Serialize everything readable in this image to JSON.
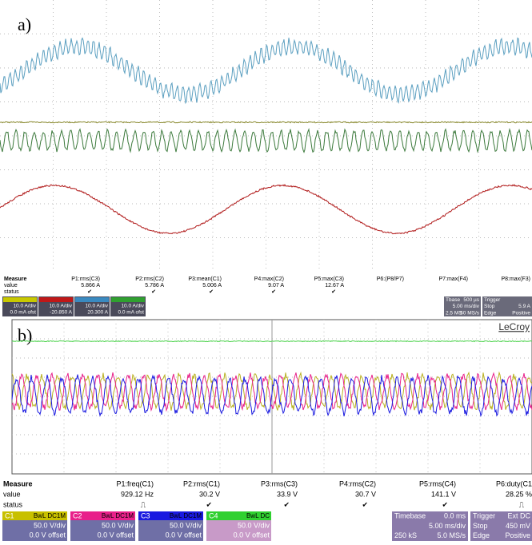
{
  "panel_a": {
    "label": "a)",
    "measure": {
      "heading": "Measure",
      "row_labels": [
        "value",
        "status"
      ],
      "columns": [
        {
          "name": "P1:rms(C3)",
          "value": "5.866 A",
          "status": "✔"
        },
        {
          "name": "P2:rms(C2)",
          "value": "5.786 A",
          "status": "✔"
        },
        {
          "name": "P3:mean(C1)",
          "value": "5.006 A",
          "status": "✔"
        },
        {
          "name": "P4:max(C2)",
          "value": "9.07 A",
          "status": "✔"
        },
        {
          "name": "P5:max(C3)",
          "value": "12.67 A",
          "status": "✔"
        },
        {
          "name": "P6:(P8/P7)"
        },
        {
          "name": "P7:max(F4)"
        },
        {
          "name": "P8:max(F3)"
        }
      ]
    },
    "channels": [
      {
        "scale": "10.0 A/div",
        "offset": "0.0 mA ofst"
      },
      {
        "scale": "10.0 A/div",
        "offset": "-20.850 A"
      },
      {
        "scale": "10.0 A/div",
        "offset": "20.300 A"
      },
      {
        "scale": "10.0 A/div",
        "offset": "0.0 mA ofst"
      }
    ],
    "timebase": {
      "title": "Tbase",
      "delay": "500 µs",
      "scale": "5.00 ms/div",
      "samples": "2.5 MS",
      "rate": "50 MS/s"
    },
    "trigger": {
      "title": "Trigger",
      "mode": "Stop",
      "level": "5.9 A",
      "type": "Edge",
      "slope": "Positive"
    }
  },
  "panel_b": {
    "label": "b)",
    "brand": "LeCroy",
    "measure": {
      "heading": "Measure",
      "row_labels": [
        "value",
        "status"
      ],
      "columns": [
        {
          "name": "P1:freq(C1)",
          "value": "929.12 Hz",
          "status": "⎍"
        },
        {
          "name": "P2:rms(C1)",
          "value": "30.2 V",
          "status": "✔"
        },
        {
          "name": "P3:rms(C3)",
          "value": "33.9 V",
          "status": "✔"
        },
        {
          "name": "P4:rms(C2)",
          "value": "30.7 V",
          "status": "✔"
        },
        {
          "name": "P5:rms(C4)",
          "value": "141.1 V",
          "status": "✔"
        },
        {
          "name": "P6:duty(C1",
          "value": "28.25 %",
          "status": "⎍"
        }
      ]
    },
    "channels": [
      {
        "name": "C1",
        "coupling": "BwL DC1M",
        "scale": "50.0 V/div",
        "offset": "0.0 V offset"
      },
      {
        "name": "C2",
        "coupling": "BwL DC1M",
        "scale": "50.0 V/div",
        "offset": "0.0 V offset"
      },
      {
        "name": "C3",
        "coupling": "BwL DC1M",
        "scale": "50.0 V/div",
        "offset": "0.0 V offset"
      },
      {
        "name": "C4",
        "coupling": "BwL DC",
        "scale": "50.0 V/div",
        "offset": "0.0 V offset"
      }
    ],
    "timebase": {
      "title": "Timebase",
      "delay": "0.0 ms",
      "scale": "5.00 ms/div",
      "samples": "250 kS",
      "rate": "5.0 MS/s"
    },
    "trigger": {
      "title": "Trigger",
      "source": "Ext DC",
      "mode": "Stop",
      "level": "450 mV",
      "type": "Edge",
      "slope": "Positive"
    }
  }
}
